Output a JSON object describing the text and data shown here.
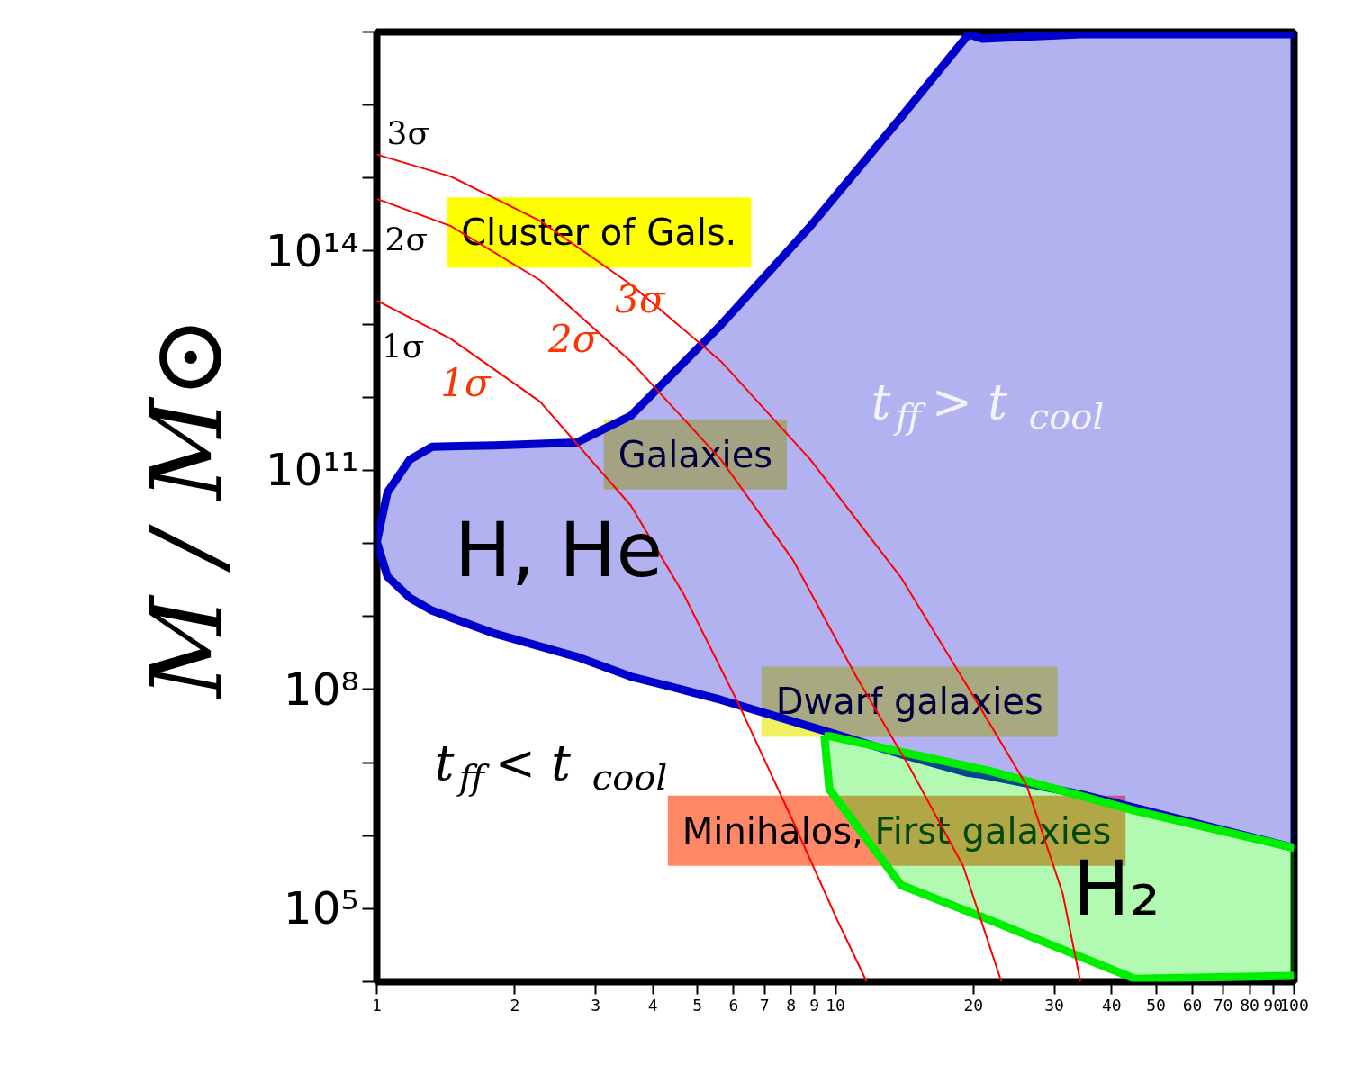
{
  "chart_data": {
    "type": "line",
    "ylabel": "M / M⊙",
    "log": "xy",
    "grid": false,
    "xlim": [
      1,
      100
    ],
    "ylim": [
      10000.0,
      1e+17
    ],
    "xticks": [
      1,
      2,
      3,
      4,
      5,
      6,
      7,
      8,
      9,
      10,
      20,
      30,
      40,
      50,
      60,
      70,
      80,
      90,
      100
    ],
    "yticks": [
      {
        "value": 10000.0,
        "label": null
      },
      {
        "value": 100000.0,
        "label": "10⁵"
      },
      {
        "value": 1000000.0,
        "label": null
      },
      {
        "value": 10000000.0,
        "label": null
      },
      {
        "value": 100000000.0,
        "label": "10⁸"
      },
      {
        "value": 1000000000.0,
        "label": null
      },
      {
        "value": 10000000000.0,
        "label": null
      },
      {
        "value": 100000000000.0,
        "label": "10¹¹"
      },
      {
        "value": 1000000000000.0,
        "label": null
      },
      {
        "value": 10000000000000.0,
        "label": null
      },
      {
        "value": 100000000000000.0,
        "label": "10¹⁴"
      },
      {
        "value": 1000000000000000.0,
        "label": null
      },
      {
        "value": 1e+16,
        "label": null
      },
      {
        "value": 1e+17,
        "label": null
      }
    ],
    "series": [
      {
        "color": "#0000cc",
        "x": [
          1,
          1.055,
          1.18,
          1.32,
          1.81,
          2.73,
          3.58,
          4.48,
          5.63,
          8.82,
          13.9,
          19.5,
          20.9,
          34.2,
          100
        ],
        "values": [
          10500000000.0,
          50000000000.0,
          140000000000.0,
          210000000000.0,
          220000000000.0,
          240000000000.0,
          560000000000.0,
          2300000000000.0,
          9800000000000.0,
          220000000000000.0,
          6800000000000000.0,
          9.3e+16,
          8.1e+16,
          9.3e+16,
          9.3e+16
        ],
        "upper": [
          10500000000.0,
          50000000000.0,
          140000000000.0,
          210000000000.0,
          220000000000.0,
          240000000000.0,
          560000000000.0,
          2300000000000.0,
          9800000000000.0,
          220000000000000.0,
          6800000000000000.0,
          9.3e+16,
          8.1e+16,
          9.3e+16,
          9.3e+16
        ],
        "lower": [
          10500000000.0,
          3500000000.0,
          1800000000.0,
          1200000000.0,
          580000000.0,
          280000000.0,
          150000000.0,
          105000000.0,
          72000000.0,
          31000000.0,
          13000000.0,
          7200000.0,
          6800000.0,
          3700000.0,
          680000.0
        ]
      },
      {
        "color": "#0000cc",
        "x": [
          1,
          1.055,
          1.18,
          1.32,
          1.81,
          2.73,
          3.58,
          4.48,
          5.63,
          8.82,
          13.9,
          19.5,
          20.9,
          34.2,
          100
        ],
        "values": [
          10500000000.0,
          3500000000.0,
          1800000000.0,
          1200000000.0,
          580000000.0,
          280000000.0,
          150000000.0,
          105000000.0,
          72000000.0,
          31000000.0,
          13000000.0,
          7200000.0,
          6800000.0,
          3700000.0,
          680000.0
        ]
      },
      {
        "color": "#00ee00",
        "x": [
          9.46,
          9.7,
          13.9,
          21.8,
          44.9,
          100
        ],
        "values": [
          23000000.0,
          23000000.0,
          14000000.0,
          7600000.0,
          2200000.0,
          680000.0
        ],
        "upper": [
          23000000.0,
          23000000.0,
          14000000.0,
          7600000.0,
          2200000.0,
          680000.0
        ],
        "lower": [
          23000000.0,
          4300000.0,
          210000.0,
          69000.0,
          11000.0,
          12000.0
        ]
      },
      {
        "color": "#00ee00",
        "x": [
          9.46,
          9.7,
          13.9,
          21.8,
          44.9,
          100
        ],
        "values": [
          23000000.0,
          4300000.0,
          210000.0,
          69000.0,
          11000.0,
          12000.0
        ]
      },
      {
        "color": "#ff0000",
        "x": [
          1,
          1.45,
          2.27,
          3.58,
          4.69,
          6.15,
          8.07,
          10.1,
          11.7
        ],
        "values": [
          21000000000000.0,
          6300000000000.0,
          870000000000.0,
          33000000000.0,
          1900000000.0,
          63000000.0,
          1600000.0,
          69000.0,
          10000.0
        ]
      },
      {
        "color": "#ff0000",
        "x": [
          1,
          1.45,
          2.27,
          3.58,
          5.63,
          8.07,
          11.1,
          14.5,
          19.0,
          23.0
        ],
        "values": [
          520000000000000.0,
          220000000000000.0,
          40000000000000.0,
          3100000000000.0,
          140000000000.0,
          6000000000.0,
          150000000.0,
          8700000.0,
          380000.0,
          10000.0
        ]
      },
      {
        "color": "#ff0000",
        "x": [
          1,
          1.45,
          2.27,
          3.58,
          5.63,
          8.82,
          13.9,
          19.9,
          26.1,
          31.3,
          34.2
        ],
        "values": [
          2100000000000000.0,
          1050000000000000.0,
          260000000000000.0,
          35000000000000.0,
          3100000000000.0,
          140000000000.0,
          3400000000.0,
          85000000.0,
          4900000.0,
          160000.0,
          10000.0
        ]
      }
    ],
    "annotations": [
      "3σ",
      "2σ",
      "1σ",
      "1σ",
      "2σ",
      "3σ",
      "Cluster of Gals.",
      "Galaxies",
      "H, He",
      "t$_{ff}$ > t$_{cool}$",
      "Dwarf galaxies",
      "t$_{ff}$ < t$_{cool}$",
      "Minihalos, First galaxies",
      "H₂"
    ]
  }
}
